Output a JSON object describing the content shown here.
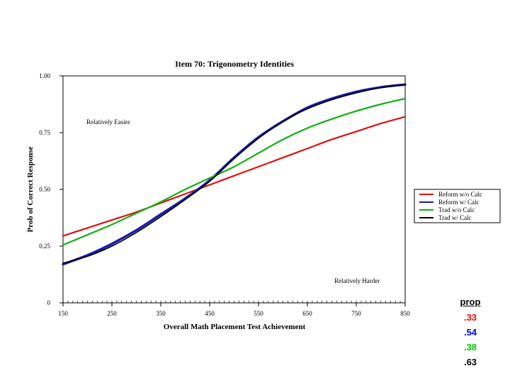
{
  "chart_data": {
    "type": "line",
    "title": "Item 70: Trigonometry Identities",
    "xlabel": "Overall Math Placement Test Achievement",
    "ylabel": "Prob of Correct Response",
    "xlim": [
      150,
      850
    ],
    "ylim": [
      0,
      1
    ],
    "x_ticks": [
      "150",
      "250",
      "350",
      "450",
      "550",
      "650",
      "750",
      "850"
    ],
    "y_ticks": [
      "0",
      "0.25",
      "0.50",
      "0.75",
      "1.00"
    ],
    "grid": false,
    "legend_position": "right",
    "annotations": [
      "Relatively Easier",
      "Relatively Harder"
    ],
    "x": [
      150,
      200,
      250,
      300,
      350,
      400,
      450,
      500,
      550,
      600,
      650,
      700,
      750,
      800,
      850
    ],
    "series": [
      {
        "name": "Reform w/o Calc",
        "color": "#e01010",
        "values": [
          0.295,
          0.33,
          0.365,
          0.4,
          0.44,
          0.48,
          0.52,
          0.56,
          0.6,
          0.64,
          0.68,
          0.72,
          0.755,
          0.79,
          0.82
        ]
      },
      {
        "name": "Reform w/ Calc",
        "color": "#1a1aa8",
        "values": [
          0.17,
          0.21,
          0.26,
          0.32,
          0.39,
          0.46,
          0.54,
          0.64,
          0.73,
          0.8,
          0.86,
          0.9,
          0.93,
          0.95,
          0.962
        ]
      },
      {
        "name": "Trad w/o Calc",
        "color": "#10b010",
        "values": [
          0.255,
          0.3,
          0.345,
          0.395,
          0.445,
          0.5,
          0.55,
          0.6,
          0.66,
          0.72,
          0.77,
          0.81,
          0.845,
          0.875,
          0.9
        ]
      },
      {
        "name": "Trad w/ Calc",
        "color": "#000000",
        "values": [
          0.175,
          0.205,
          0.25,
          0.31,
          0.38,
          0.455,
          0.535,
          0.635,
          0.725,
          0.8,
          0.855,
          0.895,
          0.925,
          0.948,
          0.962
        ]
      }
    ]
  },
  "side_panel": {
    "title": "prop",
    "values": [
      {
        "text": ".33",
        "color": "#ff0000"
      },
      {
        "text": ".54",
        "color": "#0000ff"
      },
      {
        "text": ".38",
        "color": "#00cc00"
      },
      {
        "text": ".63",
        "color": "#000000"
      }
    ]
  }
}
